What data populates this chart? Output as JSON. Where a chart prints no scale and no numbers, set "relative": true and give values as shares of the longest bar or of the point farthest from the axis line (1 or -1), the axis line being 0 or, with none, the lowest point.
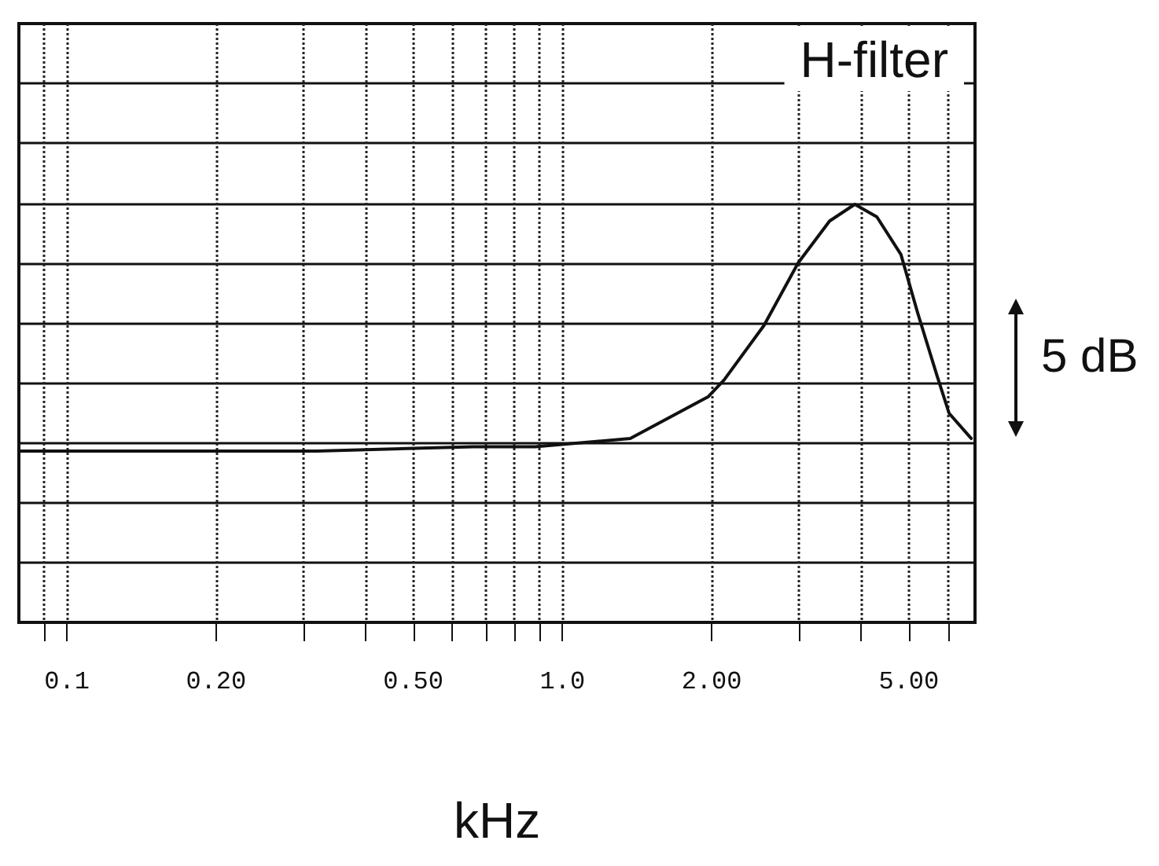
{
  "chart_data": {
    "type": "line",
    "title": "H-filter",
    "xlabel": "kHz",
    "relative": true,
    "log": "x",
    "grid": true,
    "marker": "none",
    "line_style": "solid",
    "xlim": [
      0.08,
      6.8
    ],
    "xticks": [
      {
        "value": 0.09,
        "label": null
      },
      {
        "value": 0.1,
        "label": "0.1"
      },
      {
        "value": 0.2,
        "label": "0.20"
      },
      {
        "value": 0.3,
        "label": null
      },
      {
        "value": 0.4,
        "label": null
      },
      {
        "value": 0.5,
        "label": "0.50"
      },
      {
        "value": 0.6,
        "label": null
      },
      {
        "value": 0.7,
        "label": null
      },
      {
        "value": 0.8,
        "label": null
      },
      {
        "value": 0.9,
        "label": null
      },
      {
        "value": 1,
        "label": "1.0"
      },
      {
        "value": 2,
        "label": "2.00"
      },
      {
        "value": 3,
        "label": null
      },
      {
        "value": 4,
        "label": null
      },
      {
        "value": 5,
        "label": "5.00"
      },
      {
        "value": 6,
        "label": null
      }
    ],
    "annotations": [
      "5 dB"
    ],
    "series": [
      {
        "color": "#111111",
        "x": [
          0.08,
          0.15,
          0.32,
          0.66,
          0.88,
          1.37,
          1.97,
          2.12,
          2.55,
          2.99,
          3.46,
          3.89,
          4.31,
          4.82,
          5.21,
          5.7,
          6.03,
          6.68
        ],
        "values": [
          0.41,
          0.41,
          0.41,
          0.42,
          0.42,
          0.44,
          0.54,
          0.58,
          0.71,
          0.86,
          0.96,
          1.0,
          0.97,
          0.88,
          0.74,
          0.59,
          0.5,
          0.44
        ]
      }
    ]
  }
}
